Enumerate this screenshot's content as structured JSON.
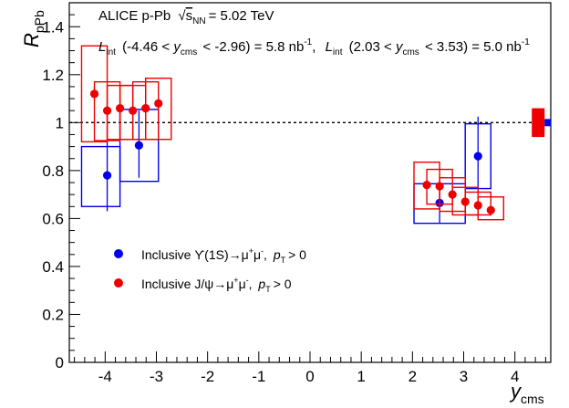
{
  "chart_data": {
    "type": "scatter",
    "title": "",
    "header": {
      "experiment": "ALICE p-Pb",
      "energy_symbol": "s",
      "energy_sub": "NN",
      "energy_value": "= 5.02 TeV",
      "lumi_sym": "L",
      "lumi_sub": "int",
      "lumi1_range_pre": "(-4.46 <",
      "lumi1_range_post": "< -2.96) = 5.8 nb",
      "lumi2_range_pre": "(2.03 <",
      "lumi2_range_post": "< 3.53) = 5.0 nb",
      "y_sym": "y",
      "y_sub": "cms",
      "sup_minus1": "-1",
      "comma": ","
    },
    "xlabel": {
      "main": "y",
      "sub": "cms"
    },
    "ylabel": {
      "main": "R",
      "sub": "pPb"
    },
    "xlim": [
      -4.7,
      4.7
    ],
    "ylim": [
      0,
      1.5
    ],
    "x_ticks": [
      -4,
      -3,
      -2,
      -1,
      0,
      1,
      2,
      3,
      4
    ],
    "x_tick_labels": [
      "-4",
      "-3",
      "-2",
      "-1",
      "0",
      "1",
      "2",
      "3",
      "4"
    ],
    "y_ticks": [
      0,
      0.2,
      0.4,
      0.6,
      0.8,
      1.0,
      1.2,
      1.4
    ],
    "y_tick_labels": [
      "0",
      "0.2",
      "0.4",
      "0.6",
      "0.8",
      "1",
      "1.2",
      "1.4"
    ],
    "reference_line": 1.0,
    "grid": false,
    "legend_position": "middle-left",
    "series": [
      {
        "name": "Inclusive Υ(1S)→μ⁺μ⁻, p_T > 0",
        "legend": {
          "pre": "Inclusive ϒ(1S)→μ",
          "sup1": "+",
          "mid": "μ",
          "sup2": "-",
          "post": ",",
          "pt": "p",
          "pt_sub": "T",
          "cond": "> 0"
        },
        "color": "#0000ee",
        "points": [
          {
            "x": -3.96,
            "y": 0.78,
            "stat": [
              0.63,
              0.92
            ],
            "sys": [
              -4.46,
              -3.71,
              0.65,
              0.9
            ]
          },
          {
            "x": -3.34,
            "y": 0.905,
            "stat": [
              0.77,
              1.05
            ],
            "sys": [
              -3.71,
              -2.96,
              0.755,
              1.055
            ]
          },
          {
            "x": 2.53,
            "y": 0.665,
            "stat": [
              0.58,
              0.735
            ],
            "sys": [
              2.03,
              3.03,
              0.58,
              0.745
            ]
          },
          {
            "x": 3.28,
            "y": 0.86,
            "stat": [
              0.725,
              1.025
            ],
            "sys": [
              3.03,
              3.53,
              0.725,
              0.995
            ]
          }
        ]
      },
      {
        "name": "Inclusive J/ψ→μ⁺μ⁻, p_T > 0",
        "legend": {
          "pre": "Inclusive J/ψ→μ",
          "sup1": "+",
          "mid": "μ",
          "sup2": "-",
          "post": ",",
          "pt": "p",
          "pt_sub": "T",
          "cond": "> 0"
        },
        "color": "#ee0000",
        "points": [
          {
            "x": -4.21,
            "y": 1.12,
            "stat": [
              1.09,
              1.15
            ],
            "sys": [
              -4.46,
              -3.96,
              0.92,
              1.32
            ]
          },
          {
            "x": -3.96,
            "y": 1.05,
            "stat": [
              1.025,
              1.075
            ],
            "sys": [
              -4.21,
              -3.71,
              0.925,
              1.17
            ]
          },
          {
            "x": -3.71,
            "y": 1.06,
            "stat": [
              1.035,
              1.085
            ],
            "sys": [
              -3.96,
              -3.46,
              0.93,
              1.155
            ]
          },
          {
            "x": -3.46,
            "y": 1.05,
            "stat": [
              1.025,
              1.075
            ],
            "sys": [
              -3.71,
              -3.21,
              0.93,
              1.155
            ]
          },
          {
            "x": -3.21,
            "y": 1.06,
            "stat": [
              1.035,
              1.085
            ],
            "sys": [
              -3.46,
              -2.96,
              0.93,
              1.17
            ]
          },
          {
            "x": -2.96,
            "y": 1.08,
            "stat": [
              1.055,
              1.105
            ],
            "sys": [
              -3.21,
              -2.71,
              0.93,
              1.185
            ]
          },
          {
            "x": 2.28,
            "y": 0.74,
            "stat": [
              0.72,
              0.76
            ],
            "sys": [
              2.03,
              2.53,
              0.64,
              0.835
            ]
          },
          {
            "x": 2.53,
            "y": 0.735,
            "stat": [
              0.715,
              0.755
            ],
            "sys": [
              2.28,
              2.78,
              0.66,
              0.805
            ]
          },
          {
            "x": 2.78,
            "y": 0.7,
            "stat": [
              0.68,
              0.72
            ],
            "sys": [
              2.53,
              3.03,
              0.63,
              0.77
            ]
          },
          {
            "x": 3.03,
            "y": 0.67,
            "stat": [
              0.65,
              0.69
            ],
            "sys": [
              2.78,
              3.28,
              0.615,
              0.73
            ]
          },
          {
            "x": 3.28,
            "y": 0.655,
            "stat": [
              0.635,
              0.675
            ],
            "sys": [
              3.03,
              3.53,
              0.615,
              0.71
            ]
          },
          {
            "x": 3.53,
            "y": 0.635,
            "stat": [
              0.615,
              0.655
            ],
            "sys": [
              3.28,
              3.78,
              0.595,
              0.69
            ]
          }
        ]
      }
    ],
    "global_uncertainty": [
      {
        "name": "J/ψ global uncertainty",
        "color": "#ee0000",
        "range": [
          0.94,
          1.06
        ]
      },
      {
        "name": "Υ(1S) global uncertainty",
        "color": "#0000ee",
        "range": [
          0.985,
          1.015
        ]
      }
    ]
  }
}
